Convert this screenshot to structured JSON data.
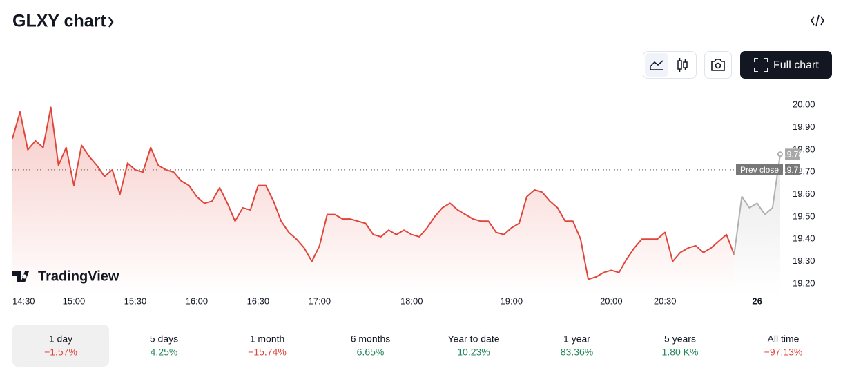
{
  "header": {
    "title": "GLXY chart",
    "button": "Full chart"
  },
  "chart_data": {
    "type": "line",
    "categories": [
      "14:30",
      null,
      null,
      null,
      null,
      null,
      null,
      null,
      "15:00",
      null,
      null,
      null,
      null,
      null,
      null,
      null,
      "15:30",
      null,
      null,
      null,
      null,
      null,
      null,
      null,
      "16:00",
      null,
      null,
      null,
      null,
      null,
      null,
      null,
      "16:30",
      null,
      null,
      null,
      null,
      null,
      null,
      null,
      "17:00",
      null,
      null,
      null,
      null,
      null,
      null,
      null,
      null,
      null,
      null,
      null,
      "18:00",
      null,
      null,
      null,
      null,
      null,
      null,
      null,
      null,
      null,
      null,
      null,
      null,
      "19:00",
      null,
      null,
      null,
      null,
      null,
      null,
      null,
      null,
      null,
      null,
      null,
      null,
      "20:00",
      null,
      null,
      null,
      null,
      null,
      null,
      "20:30",
      null,
      null,
      null,
      null,
      null,
      null,
      null,
      null,
      null,
      null,
      null,
      "26",
      null,
      null,
      null
    ],
    "series": [
      {
        "color": "#e0453a",
        "values": [
          19.85,
          19.97,
          19.8,
          19.84,
          19.81,
          19.99,
          19.73,
          19.81,
          19.64,
          19.82,
          19.77,
          19.73,
          19.68,
          19.71,
          19.6,
          19.74,
          19.71,
          19.7,
          19.81,
          19.73,
          19.71,
          19.7,
          19.66,
          19.64,
          19.59,
          19.56,
          19.57,
          19.63,
          19.56,
          19.48,
          19.54,
          19.53,
          19.64,
          19.64,
          19.57,
          19.48,
          19.43,
          19.4,
          19.36,
          19.3,
          19.37,
          19.51,
          19.51,
          19.49,
          19.49,
          19.48,
          19.47,
          19.42,
          19.41,
          19.44,
          19.42,
          19.44,
          19.42,
          19.41,
          19.45,
          19.5,
          19.54,
          19.56,
          19.53,
          19.51,
          19.49,
          19.48,
          19.48,
          19.43,
          19.42,
          19.45,
          19.47,
          19.59,
          19.62,
          19.61,
          19.57,
          19.54,
          19.48,
          19.48,
          19.4,
          19.22,
          19.23,
          19.25,
          19.26,
          19.25,
          19.31,
          19.36,
          19.4,
          19.4,
          19.4,
          19.43,
          19.3,
          19.34,
          19.36,
          19.37,
          19.34,
          19.36,
          19.39,
          19.42,
          19.33,
          null,
          null,
          null,
          null,
          null,
          null
        ]
      },
      {
        "color": "#b0b0b0",
        "values": [
          null,
          null,
          null,
          null,
          null,
          null,
          null,
          null,
          null,
          null,
          null,
          null,
          null,
          null,
          null,
          null,
          null,
          null,
          null,
          null,
          null,
          null,
          null,
          null,
          null,
          null,
          null,
          null,
          null,
          null,
          null,
          null,
          null,
          null,
          null,
          null,
          null,
          null,
          null,
          null,
          null,
          null,
          null,
          null,
          null,
          null,
          null,
          null,
          null,
          null,
          null,
          null,
          null,
          null,
          null,
          null,
          null,
          null,
          null,
          null,
          null,
          null,
          null,
          null,
          null,
          null,
          null,
          null,
          null,
          null,
          null,
          null,
          null,
          null,
          null,
          null,
          null,
          null,
          null,
          null,
          null,
          null,
          null,
          null,
          null,
          null,
          null,
          null,
          null,
          null,
          null,
          null,
          null,
          null,
          19.33,
          19.59,
          19.54,
          19.56,
          19.51,
          19.54,
          19.78
        ]
      }
    ],
    "ylim": [
      19.15,
      20.05
    ],
    "yticks": [
      {
        "value": 19.2,
        "label": "19.20"
      },
      {
        "value": 19.3,
        "label": "19.30"
      },
      {
        "value": 19.4,
        "label": "19.40"
      },
      {
        "value": 19.5,
        "label": "19.50"
      },
      {
        "value": 19.6,
        "label": "19.60"
      },
      {
        "value": 19.7,
        "label": "19.70"
      },
      {
        "value": 19.8,
        "label": "19.80"
      },
      {
        "value": 19.9,
        "label": "19.90"
      },
      {
        "value": 20,
        "label": "20.00"
      }
    ],
    "prev_close": {
      "label": "Prev close",
      "value": 19.71
    },
    "watermark": "TradingView"
  },
  "periods": [
    {
      "label": "1 day",
      "change": "−1.57%"
    },
    {
      "label": "5 days",
      "change": "4.25%"
    },
    {
      "label": "1 month",
      "change": "−15.74%"
    },
    {
      "label": "6 months",
      "change": "6.65%"
    },
    {
      "label": "Year to date",
      "change": "10.23%"
    },
    {
      "label": "1 year",
      "change": "83.36%"
    },
    {
      "label": "5 years",
      "change": "1.80 K%"
    },
    {
      "label": "All time",
      "change": "−97.13%"
    }
  ],
  "selected_period": 0
}
